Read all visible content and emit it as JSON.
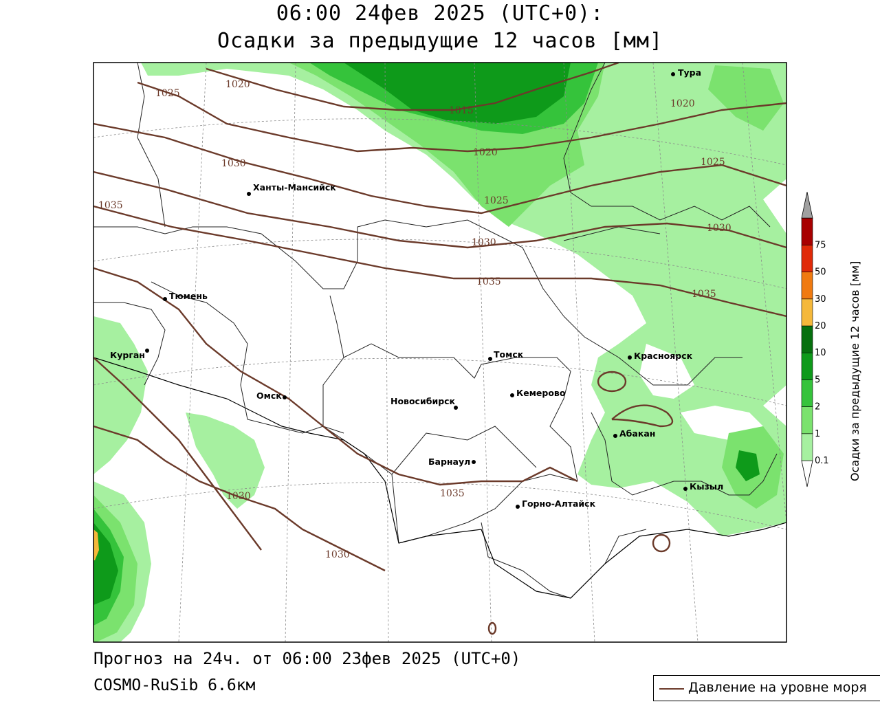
{
  "header": {
    "line1": "06:00 24фев 2025 (UTC+0):",
    "line2": "Осадки за предыдущие 12 часов [мм]"
  },
  "footer": {
    "forecast": "Прогноз на 24ч. от 06:00 23фев 2025 (UTC+0)",
    "model": "COSMO-RuSib 6.6км"
  },
  "legend": {
    "pressure_label": "Давление на уровне моря",
    "pressure_color": "#6b3a2a"
  },
  "colorbar": {
    "title": "Осадки за предыдущие 12 часов [мм]",
    "levels": [
      "0.1",
      "1",
      "2",
      "5",
      "10",
      "20",
      "30",
      "50",
      "75"
    ],
    "colors": [
      "#a6f0a0",
      "#7be26e",
      "#35c33b",
      "#0e9a1a",
      "#06700e",
      "#f5b83a",
      "#f07a10",
      "#e02a08",
      "#a80000",
      "#a0a0a0"
    ]
  },
  "cities": [
    {
      "name": "Тура"
    },
    {
      "name": "Ханты-Мансийск"
    },
    {
      "name": "Тюмень"
    },
    {
      "name": "Курган"
    },
    {
      "name": "Омск"
    },
    {
      "name": "Новосибирск"
    },
    {
      "name": "Томск"
    },
    {
      "name": "Кемерово"
    },
    {
      "name": "Красноярск"
    },
    {
      "name": "Абакан"
    },
    {
      "name": "Барнаул"
    },
    {
      "name": "Горно-Алтайск"
    },
    {
      "name": "Кызыл"
    }
  ],
  "isobars": [
    "1025",
    "1020",
    "1015",
    "1020",
    "1020",
    "1025",
    "1030",
    "1035",
    "1025",
    "1030",
    "1030",
    "1035",
    "1035",
    "1030",
    "1035",
    "1030"
  ]
}
